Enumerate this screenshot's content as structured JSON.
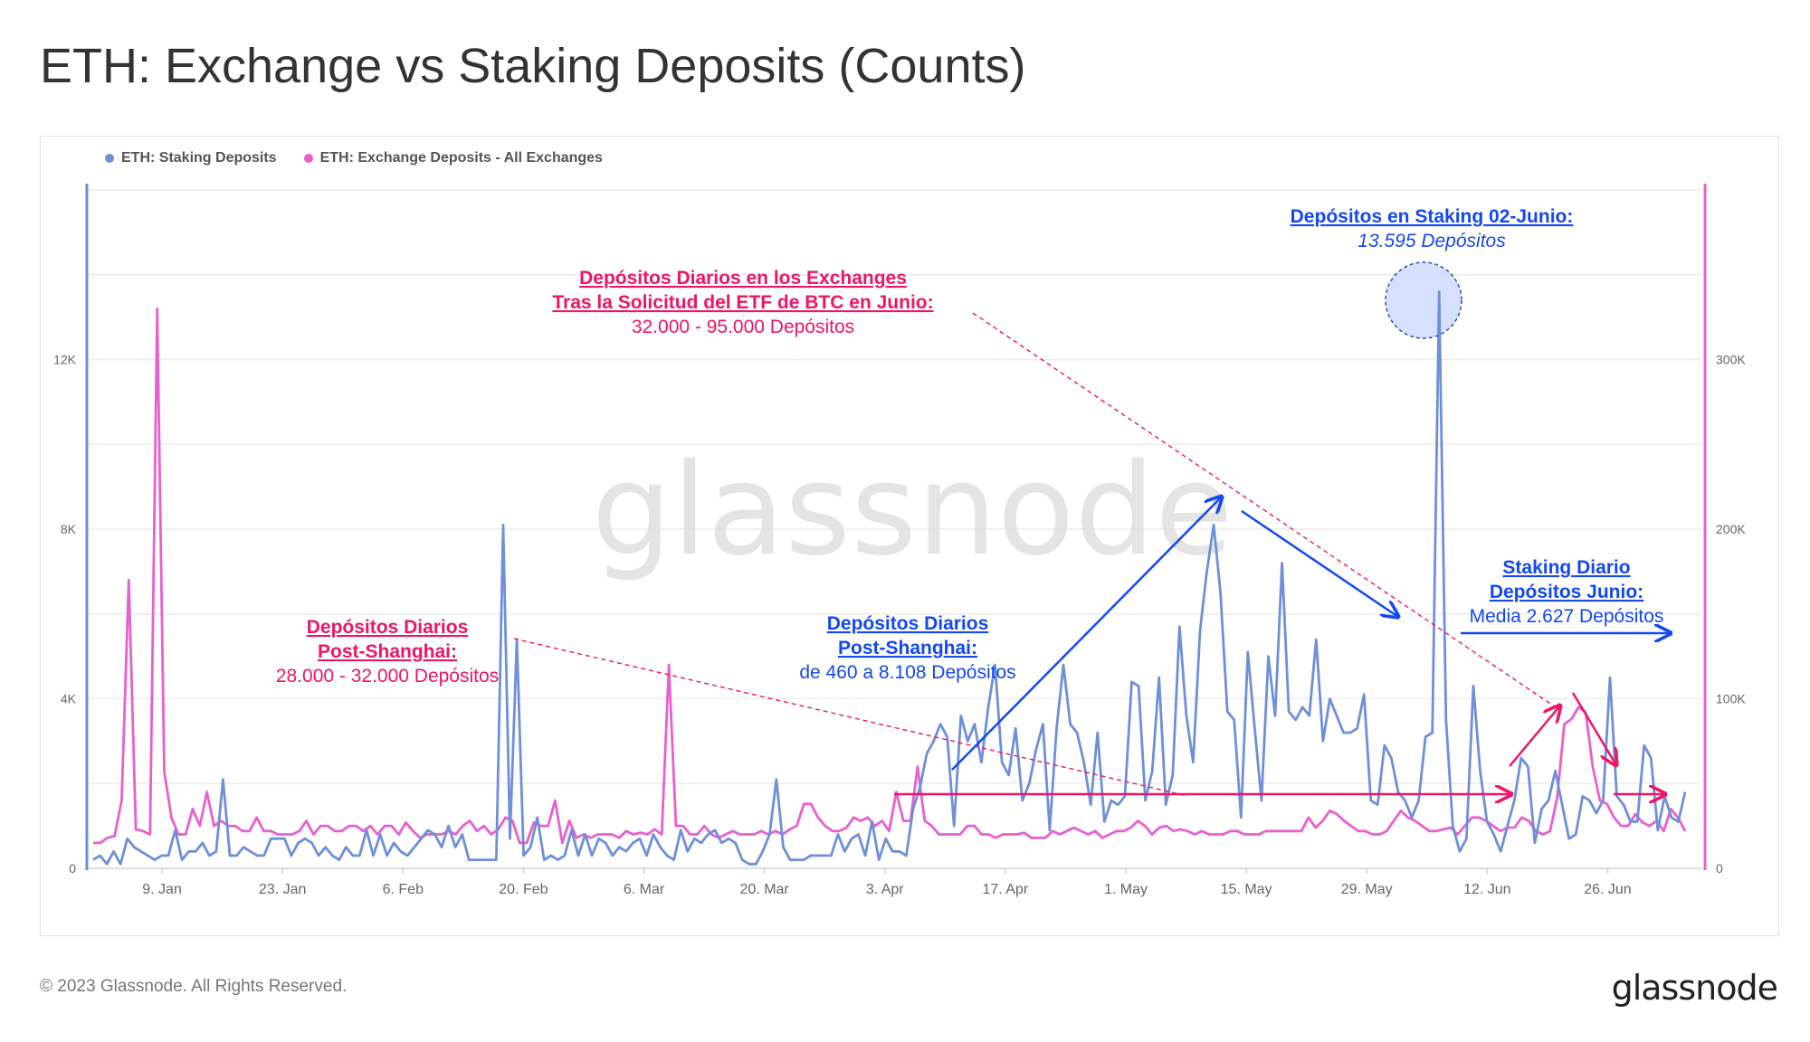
{
  "title": "ETH: Exchange vs Staking Deposits (Counts)",
  "watermark": "glassnode",
  "footer": {
    "copyright": "© 2023 Glassnode. All Rights Reserved.",
    "logo_text": "glassnode"
  },
  "colors": {
    "staking": "#6f8fd8",
    "exchange": "#e860cf",
    "annotation_red": "#ee1566",
    "annotation_blue": "#1448f0",
    "grid": "#ececec",
    "tick": "#666666"
  },
  "legend": {
    "placement": "top-left",
    "items": [
      {
        "label": "ETH: Staking Deposits",
        "color": "#6f8fd8"
      },
      {
        "label": "ETH: Exchange Deposits - All Exchanges",
        "color": "#e860cf"
      }
    ]
  },
  "annotations": {
    "staking_peak": {
      "title": "Depósitos en Staking 02-Junio:",
      "text": "13.595 Depósitos"
    },
    "exchange_june": {
      "title_1": "Depósitos Diarios en los Exchanges",
      "title_2": "Tras la Solicitud del ETF de BTC en Junio:",
      "text": "32.000 - 95.000 Depósitos"
    },
    "exchange_post_shanghai": {
      "title_1": "Depósitos Diarios",
      "title_2": "Post-Shanghai:",
      "text": "28.000 - 32.000 Depósitos"
    },
    "staking_post_shanghai": {
      "title_1": "Depósitos Diarios",
      "title_2": "Post-Shanghai:",
      "text": "de 460 a 8.108 Depósitos"
    },
    "staking_june": {
      "title_1": "Staking Diario",
      "title_2": "Depósitos Junio:",
      "text": "Media 2.627 Depósitos"
    }
  },
  "chart_data": {
    "type": "line",
    "x_start": "2023-01-01",
    "x_end": "2023-07-04",
    "x_ticks": [
      "9. Jan",
      "23. Jan",
      "6. Feb",
      "20. Feb",
      "6. Mar",
      "20. Mar",
      "3. Apr",
      "17. Apr",
      "1. May",
      "15. May",
      "29. May",
      "12. Jun",
      "26. Jun"
    ],
    "y_left": {
      "ticks": [
        "0",
        "4K",
        "8K",
        "12K"
      ],
      "range": [
        0,
        16000
      ]
    },
    "y_right": {
      "ticks": [
        "0",
        "100K",
        "200K",
        "300K"
      ],
      "range": [
        0,
        400000
      ]
    },
    "grid": true,
    "series": [
      {
        "name": "ETH: Staking Deposits",
        "axis": "left",
        "values": [
          200,
          300,
          100,
          400,
          100,
          700,
          500,
          400,
          300,
          200,
          300,
          300,
          900,
          200,
          400,
          400,
          600,
          300,
          400,
          2100,
          300,
          300,
          500,
          400,
          300,
          300,
          700,
          700,
          700,
          300,
          600,
          700,
          600,
          300,
          500,
          300,
          200,
          500,
          300,
          300,
          900,
          300,
          800,
          300,
          600,
          400,
          300,
          500,
          700,
          900,
          800,
          500,
          1000,
          500,
          800,
          200,
          200,
          200,
          200,
          200,
          8100,
          700,
          5400,
          300,
          500,
          1200,
          200,
          300,
          200,
          300,
          900,
          300,
          800,
          300,
          700,
          600,
          300,
          500,
          400,
          600,
          700,
          300,
          800,
          500,
          300,
          200,
          900,
          400,
          700,
          600,
          800,
          900,
          600,
          700,
          600,
          200,
          100,
          100,
          400,
          800,
          2100,
          500,
          200,
          200,
          200,
          300,
          300,
          300,
          300,
          800,
          400,
          700,
          800,
          300,
          1100,
          200,
          700,
          400,
          400,
          300,
          1400,
          1900,
          2700,
          3000,
          3400,
          3100,
          1000,
          3600,
          3000,
          3400,
          2500,
          3800,
          4800,
          2500,
          2200,
          3300,
          1600,
          2000,
          2800,
          3400,
          900,
          3300,
          4800,
          3400,
          3200,
          2500,
          1500,
          3200,
          1100,
          1600,
          1500,
          1700,
          4400,
          4300,
          1600,
          2300,
          4500,
          1500,
          2200,
          5700,
          3600,
          2500,
          5600,
          7000,
          8100,
          6500,
          3700,
          3500,
          1200,
          5100,
          3300,
          1600,
          5000,
          3600,
          7200,
          3700,
          3500,
          3800,
          3600,
          5400,
          3000,
          4000,
          3600,
          3200,
          3200,
          3300,
          4100,
          1600,
          1500,
          2900,
          2600,
          1800,
          1600,
          1200,
          1600,
          3100,
          3200,
          13595,
          3500,
          1000,
          400,
          700,
          4300,
          2300,
          1100,
          800,
          400,
          1000,
          1600,
          2600,
          2400,
          600,
          1400,
          1600,
          2300,
          1500,
          700,
          800,
          1700,
          1600,
          1300,
          1600,
          4500,
          1700,
          1500,
          1100,
          1100,
          2900,
          2600,
          900,
          1700,
          1200,
          1100,
          1800
        ],
        "color": "#6f8fd8"
      },
      {
        "name": "ETH: Exchange Deposits - All Exchanges",
        "axis": "right",
        "values": [
          15000,
          15000,
          18000,
          19000,
          40000,
          170000,
          23000,
          22000,
          20000,
          330000,
          57000,
          30000,
          20000,
          20000,
          35000,
          25000,
          45000,
          25000,
          28000,
          25000,
          25000,
          22000,
          22000,
          30000,
          22000,
          22000,
          20000,
          20000,
          20000,
          22000,
          28000,
          20000,
          25000,
          25000,
          22000,
          22000,
          25000,
          25000,
          22000,
          25000,
          20000,
          25000,
          25000,
          20000,
          27000,
          22000,
          18000,
          20000,
          20000,
          20000,
          22000,
          20000,
          25000,
          28000,
          22000,
          25000,
          20000,
          23000,
          30000,
          28000,
          15000,
          15000,
          27000,
          25000,
          25000,
          40000,
          15000,
          28000,
          18000,
          20000,
          18000,
          20000,
          20000,
          20000,
          18000,
          22000,
          20000,
          21000,
          20000,
          23000,
          20000,
          120000,
          25000,
          25000,
          20000,
          20000,
          25000,
          20000,
          18000,
          20000,
          22000,
          20000,
          20000,
          20000,
          22000,
          20000,
          22000,
          20000,
          23000,
          25000,
          38000,
          38000,
          30000,
          25000,
          22000,
          22000,
          24000,
          30000,
          28000,
          30000,
          25000,
          28000,
          22000,
          45000,
          28000,
          28000,
          60000,
          28000,
          25000,
          20000,
          20000,
          20000,
          20000,
          25000,
          25000,
          20000,
          20000,
          18000,
          20000,
          20000,
          20000,
          21000,
          18000,
          18000,
          18000,
          22000,
          20000,
          22000,
          24000,
          22000,
          20000,
          22000,
          18000,
          20000,
          22000,
          22000,
          24000,
          28000,
          25000,
          20000,
          24000,
          25000,
          22000,
          23000,
          22000,
          20000,
          22000,
          20000,
          20000,
          20000,
          22000,
          22000,
          20000,
          20000,
          20000,
          22000,
          22000,
          22000,
          22000,
          22000,
          22000,
          30000,
          24000,
          28000,
          34000,
          32000,
          28000,
          25000,
          22000,
          22000,
          20000,
          20000,
          22000,
          28000,
          34000,
          30000,
          28000,
          25000,
          22000,
          22000,
          23000,
          24000,
          20000,
          25000,
          30000,
          30000,
          28000,
          25000,
          22000,
          24000,
          24000,
          30000,
          28000,
          22000,
          20000,
          22000,
          42000,
          85000,
          88000,
          95000,
          92000,
          60000,
          40000,
          38000,
          30000,
          25000,
          25000,
          32000,
          27000,
          25000,
          28000,
          22000,
          35000,
          30000,
          22000
        ],
        "color": "#e860cf"
      }
    ]
  }
}
